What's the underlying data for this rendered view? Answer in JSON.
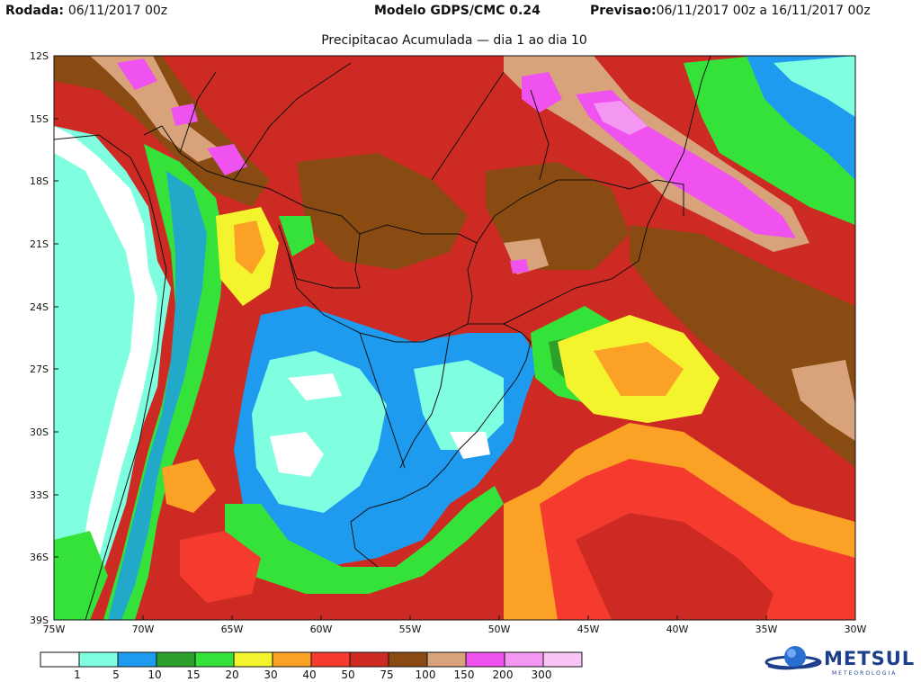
{
  "header": {
    "run_label": "Rodada:",
    "run_value": "06/11/2017 00z",
    "model": "Modelo GDPS/CMC 0.24",
    "forecast_label": "Previsao:",
    "forecast_value": "06/11/2017 00z a 16/11/2017 00z",
    "subtitle": "Precipitacao Acumulada — dia 1 ao dia 10"
  },
  "map": {
    "extent": {
      "lon": [
        -75,
        -30
      ],
      "lat": [
        -39,
        -12
      ]
    },
    "lat_ticks": [
      "12S",
      "15S",
      "18S",
      "21S",
      "24S",
      "27S",
      "30S",
      "33S",
      "36S",
      "39S"
    ],
    "lon_ticks": [
      "75W",
      "70W",
      "65W",
      "60W",
      "55W",
      "50W",
      "45W",
      "40W",
      "35W",
      "30W"
    ]
  },
  "legend": {
    "colors": [
      "#ffffff",
      "#7fffe0",
      "#1e9bef",
      "#2da02c",
      "#35e23a",
      "#f4f42e",
      "#fba126",
      "#f53b2e",
      "#cd2a23",
      "#8a4b13",
      "#d8a37a",
      "#ef52ef",
      "#f397f3",
      "#f8c5f5"
    ],
    "labels": [
      "1",
      "5",
      "10",
      "15",
      "20",
      "30",
      "40",
      "50",
      "75",
      "100",
      "150",
      "200",
      "300"
    ]
  },
  "logo": {
    "name": "METSUL",
    "tagline": "METEOROLOGIA"
  }
}
